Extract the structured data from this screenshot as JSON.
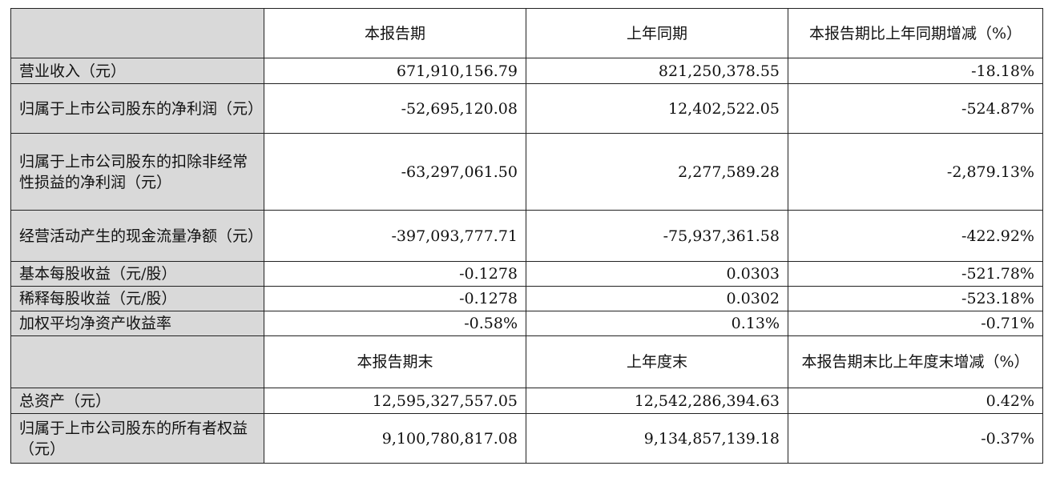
{
  "top_text": "",
  "period_header": {
    "col1": "本报告期",
    "col2": "上年同期",
    "col3": "本报告期比上年同期增减（%）"
  },
  "period_rows": [
    {
      "label": "营业收入（元）",
      "current": "671,910,156.79",
      "prior": "821,250,378.55",
      "change": "-18.18%"
    },
    {
      "label": "归属于上市公司股东的净利润（元）",
      "current": "-52,695,120.08",
      "prior": "12,402,522.05",
      "change": "-524.87%"
    },
    {
      "label": "归属于上市公司股东的扣除非经常性损益的净利润（元）",
      "current": "-63,297,061.50",
      "prior": "2,277,589.28",
      "change": "-2,879.13%"
    },
    {
      "label": "经营活动产生的现金流量净额（元）",
      "current": "-397,093,777.71",
      "prior": "-75,937,361.58",
      "change": "-422.92%"
    },
    {
      "label": "基本每股收益（元/股）",
      "current": "-0.1278",
      "prior": "0.0303",
      "change": "-521.78%"
    },
    {
      "label": "稀释每股收益（元/股）",
      "current": "-0.1278",
      "prior": "0.0302",
      "change": "-523.18%"
    },
    {
      "label": "加权平均净资产收益率",
      "current": "-0.58%",
      "prior": "0.13%",
      "change": "-0.71%"
    }
  ],
  "end_header": {
    "col1": "本报告期末",
    "col2": "上年度末",
    "col3": "本报告期末比上年度末增减（%）"
  },
  "end_rows": [
    {
      "label": "总资产（元）",
      "current": "12,595,327,557.05",
      "prior": "12,542,286,394.63",
      "change": "0.42%"
    },
    {
      "label": "归属于上市公司股东的所有者权益（元）",
      "current": "9,100,780,817.08",
      "prior": "9,134,857,139.18",
      "change": "-0.37%"
    }
  ]
}
